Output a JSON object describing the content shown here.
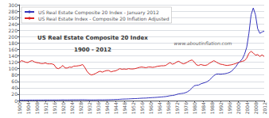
{
  "chart_data": {
    "type": "line",
    "title": "US Real Estate Composite 20 Index",
    "subtitle": "1900 - 2012",
    "annotations": [
      "www.aboutinflation.com"
    ],
    "x": [
      1900,
      1901,
      1902,
      1903,
      1904,
      1905,
      1906,
      1907,
      1908,
      1909,
      1910,
      1911,
      1912,
      1913,
      1914,
      1915,
      1916,
      1917,
      1918,
      1919,
      1920,
      1921,
      1922,
      1923,
      1924,
      1925,
      1926,
      1927,
      1928,
      1929,
      1930,
      1931,
      1932,
      1933,
      1934,
      1935,
      1936,
      1937,
      1938,
      1939,
      1940,
      1941,
      1942,
      1943,
      1944,
      1945,
      1946,
      1947,
      1948,
      1949,
      1950,
      1951,
      1952,
      1953,
      1954,
      1955,
      1956,
      1957,
      1958,
      1959,
      1960,
      1961,
      1962,
      1963,
      1964,
      1965,
      1966,
      1967,
      1968,
      1969,
      1970,
      1971,
      1972,
      1973,
      1974,
      1975,
      1976,
      1977,
      1978,
      1979,
      1980,
      1981,
      1982,
      1983,
      1984,
      1985,
      1986,
      1987,
      1988,
      1989,
      1990,
      1991,
      1992,
      1993,
      1994,
      1995,
      1996,
      1997,
      1998,
      1999,
      2000,
      2001,
      2002,
      2003,
      2004,
      2005,
      2006,
      2007,
      2008,
      2009,
      2010,
      2011,
      2012
    ],
    "series": [
      {
        "name": "US Real Estate Composite 20 Index - January 2012",
        "color": "#3333bb",
        "values": [
          1.5,
          1.5,
          1.5,
          1.5,
          1.5,
          1.6,
          1.6,
          1.6,
          1.6,
          1.7,
          1.7,
          1.7,
          1.8,
          1.8,
          1.8,
          1.8,
          1.8,
          1.8,
          1.9,
          2.0,
          2.2,
          2.0,
          2.0,
          2.1,
          2.2,
          2.3,
          2.3,
          2.3,
          2.4,
          2.5,
          2.4,
          2.2,
          2.0,
          1.9,
          2.0,
          2.0,
          2.2,
          2.3,
          2.2,
          2.3,
          2.4,
          2.6,
          2.8,
          3.0,
          3.2,
          3.5,
          4.0,
          4.5,
          4.8,
          4.9,
          5.2,
          5.6,
          5.9,
          6.2,
          6.5,
          7.0,
          7.4,
          7.7,
          7.9,
          8.5,
          9.0,
          9.3,
          9.7,
          10.2,
          10.7,
          11.3,
          11.9,
          12.6,
          13.8,
          15.2,
          15.9,
          17.1,
          19.2,
          21.2,
          22.0,
          22.9,
          24.6,
          27.8,
          32.6,
          39.2,
          46.4,
          47.9,
          48.6,
          52.2,
          54.5,
          56.6,
          59.5,
          64.5,
          71.1,
          78.3,
          82.7,
          83.4,
          82.6,
          83.4,
          84.1,
          85.5,
          87.7,
          91.4,
          98.6,
          105.8,
          116.0,
          123.2,
          130.5,
          145.0,
          166.9,
          210.4,
          268.5,
          290.0,
          268.5,
          225.0,
          210.4,
          214.6,
          217.5
        ]
      },
      {
        "name": "US Real Estate Index - Composite 20 Inflation Adjusted",
        "color": "#dd2222",
        "values": [
          118.0,
          125.0,
          123.0,
          120.0,
          119.0,
          123.0,
          125.0,
          121.0,
          119.0,
          118.0,
          116.0,
          116.0,
          118.0,
          115.0,
          115.0,
          115.0,
          112.0,
          102.0,
          100.0,
          104.0,
          110.0,
          102.0,
          102.0,
          105.0,
          104.0,
          108.0,
          108.0,
          109.0,
          110.0,
          113.0,
          104.0,
          92.0,
          84.0,
          80.0,
          82.0,
          85.0,
          89.0,
          92.0,
          89.0,
          92.0,
          94.0,
          94.0,
          90.0,
          92.0,
          93.0,
          96.0,
          100.0,
          98.0,
          99.0,
          98.0,
          100.0,
          99.0,
          99.0,
          100.0,
          102.0,
          104.0,
          105.0,
          104.0,
          103.0,
          105.0,
          105.0,
          104.0,
          105.0,
          107.0,
          108.0,
          109.0,
          109.0,
          110.0,
          115.0,
          119.0,
          114.0,
          116.0,
          121.0,
          123.0,
          118.0,
          115.0,
          117.0,
          121.0,
          125.0,
          127.0,
          121.0,
          112.0,
          110.0,
          113.0,
          111.0,
          110.0,
          112.0,
          117.0,
          121.0,
          125.0,
          121.0,
          117.0,
          114.0,
          113.0,
          111.0,
          110.0,
          111.0,
          112.0,
          114.0,
          116.0,
          119.0,
          121.0,
          123.0,
          125.0,
          133.0,
          148.0,
          154.0,
          149.0,
          142.0,
          144.0,
          138.0,
          143.0,
          138.0
        ]
      }
    ],
    "xlim": [
      1900,
      2012
    ],
    "xticks": [
      1900,
      1904,
      1908,
      1912,
      1916,
      1920,
      1924,
      1928,
      1932,
      1936,
      1940,
      1944,
      1948,
      1952,
      1956,
      1960,
      1964,
      1968,
      1972,
      1976,
      1980,
      1984,
      1988,
      1992,
      1996,
      2000,
      2004,
      2008,
      2012
    ],
    "ylim": [
      0,
      300
    ],
    "yticks": [
      0,
      20,
      40,
      60,
      80,
      100,
      120,
      140,
      160,
      180,
      200,
      220,
      240,
      260,
      280,
      300
    ],
    "grid": "y",
    "legend": "upper left"
  }
}
